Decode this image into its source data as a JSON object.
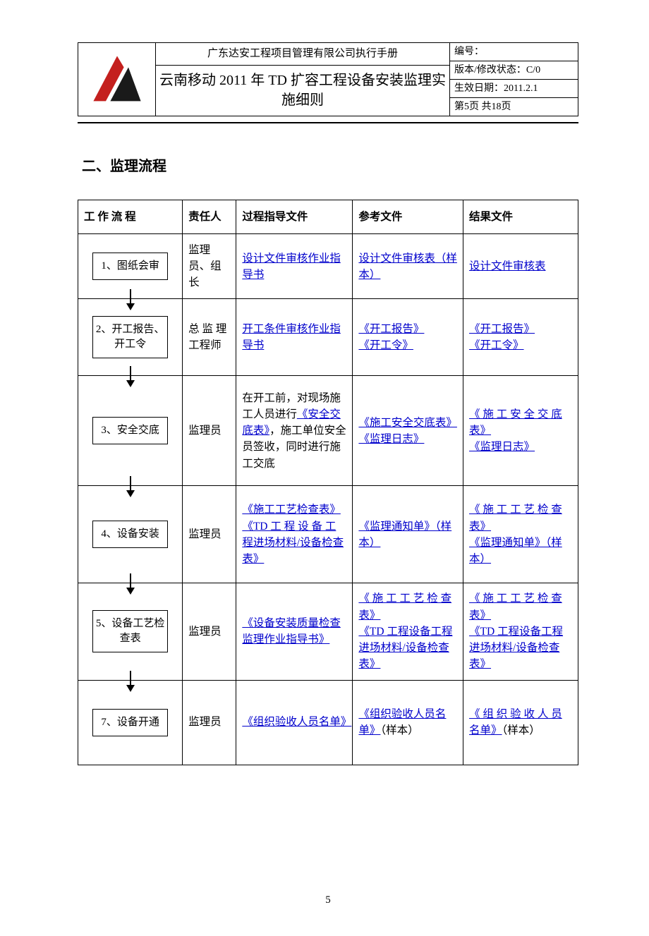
{
  "colors": {
    "text": "#000000",
    "link": "#0000cc",
    "border": "#000000",
    "bg": "#ffffff",
    "logo_red": "#c4201e",
    "logo_black": "#1a1a1a"
  },
  "header": {
    "company_line": "广东达安工程项目管理有限公司执行手册",
    "title": "云南移动 2011 年 TD 扩容工程设备安装监理实施细则",
    "doc_no_label": "编号：",
    "version_label": "版本/修改状态：",
    "version_value": "C/0",
    "effective_label": "生效日期：",
    "effective_value": "2011.2.1",
    "page_label_prefix": "第 ",
    "page_current": "5",
    "page_label_mid": " 页  共  ",
    "page_total": "18",
    "page_label_suffix": " 页"
  },
  "section_title": "二、监理流程",
  "table": {
    "headers": {
      "flow": "工 作 流 程",
      "resp": "责任人",
      "guide": "过程指导文件",
      "ref": "参考文件",
      "result": "结果文件"
    },
    "rows": [
      {
        "flow": "1、图纸会审",
        "resp": "监理员、组长",
        "guide": [
          {
            "t": "设计文件审核作业指导书",
            "link": true
          }
        ],
        "ref": [
          {
            "t": "设计文件审核表（样本）",
            "link": true
          }
        ],
        "result": [
          {
            "t": "设计文件审核表",
            "link": true
          }
        ]
      },
      {
        "flow": "2、开工报告、开工令",
        "resp": "总 监 理工程师",
        "guide": [
          {
            "t": "开工条件审核作业指导书",
            "link": true
          }
        ],
        "ref": [
          {
            "t": "《开工报告》",
            "link": true
          },
          {
            "t": "《开工令》",
            "link": true
          }
        ],
        "result": [
          {
            "t": "《开工报告》",
            "link": true
          },
          {
            "t": "《开工令》",
            "link": true
          }
        ]
      },
      {
        "flow": "3、安全交底",
        "resp": "监理员",
        "guide": [
          {
            "t": "在开工前，对现场施工人员进行",
            "link": false
          },
          {
            "t": "《安全交底表》",
            "link": true
          },
          {
            "t": "，施工单位安全员签收，同时进行施工交底",
            "link": false
          }
        ],
        "ref": [
          {
            "t": "《施工安全交底表》",
            "link": true
          },
          {
            "t": "《监理日志》",
            "link": true
          }
        ],
        "result": [
          {
            "t": "《 施 工 安 全 交 底表》",
            "link": true
          },
          {
            "t": "《监理日志》",
            "link": true
          }
        ]
      },
      {
        "flow": "4、设备安装",
        "resp": "监理员",
        "guide": [
          {
            "t": "《施工工艺检查表》",
            "link": true
          },
          {
            "t": "《TD 工 程 设 备 工程进场材料/设备检查表》",
            "link": true
          }
        ],
        "ref": [
          {
            "t": "《监理通知单》（样本）",
            "link": true
          }
        ],
        "result": [
          {
            "t": "《 施 工 工 艺 检 查表》",
            "link": true
          },
          {
            "t": "《监理通知单》（样本）",
            "link": true
          }
        ]
      },
      {
        "flow": "5、设备工艺检查表",
        "resp": "监理员",
        "guide": [
          {
            "t": "《设备安装质量检查监理作业指导书》",
            "link": true
          }
        ],
        "ref": [
          {
            "t": "《 施 工 工 艺 检 查表》",
            "link": true
          },
          {
            "t": "《TD 工程设备工程进场材料/设备检查表》",
            "link": true
          }
        ],
        "result": [
          {
            "t": "《 施 工 工 艺 检 查表》",
            "link": true
          },
          {
            "t": "《TD 工程设备工程进场材料/设备检查表》",
            "link": true
          }
        ]
      },
      {
        "flow": "7、设备开通",
        "resp": "监理员",
        "guide": [
          {
            "t": "《组织验收人员名单》",
            "link": true
          }
        ],
        "ref": [
          {
            "t": "《组织验收人员名单》",
            "link": true
          },
          {
            "t": "（样本）",
            "link": false
          }
        ],
        "result": [
          {
            "t": "《 组 织 验 收 人 员名单》",
            "link": true
          },
          {
            "t": "（样本）",
            "link": false
          }
        ]
      }
    ]
  },
  "footer_page": "5"
}
